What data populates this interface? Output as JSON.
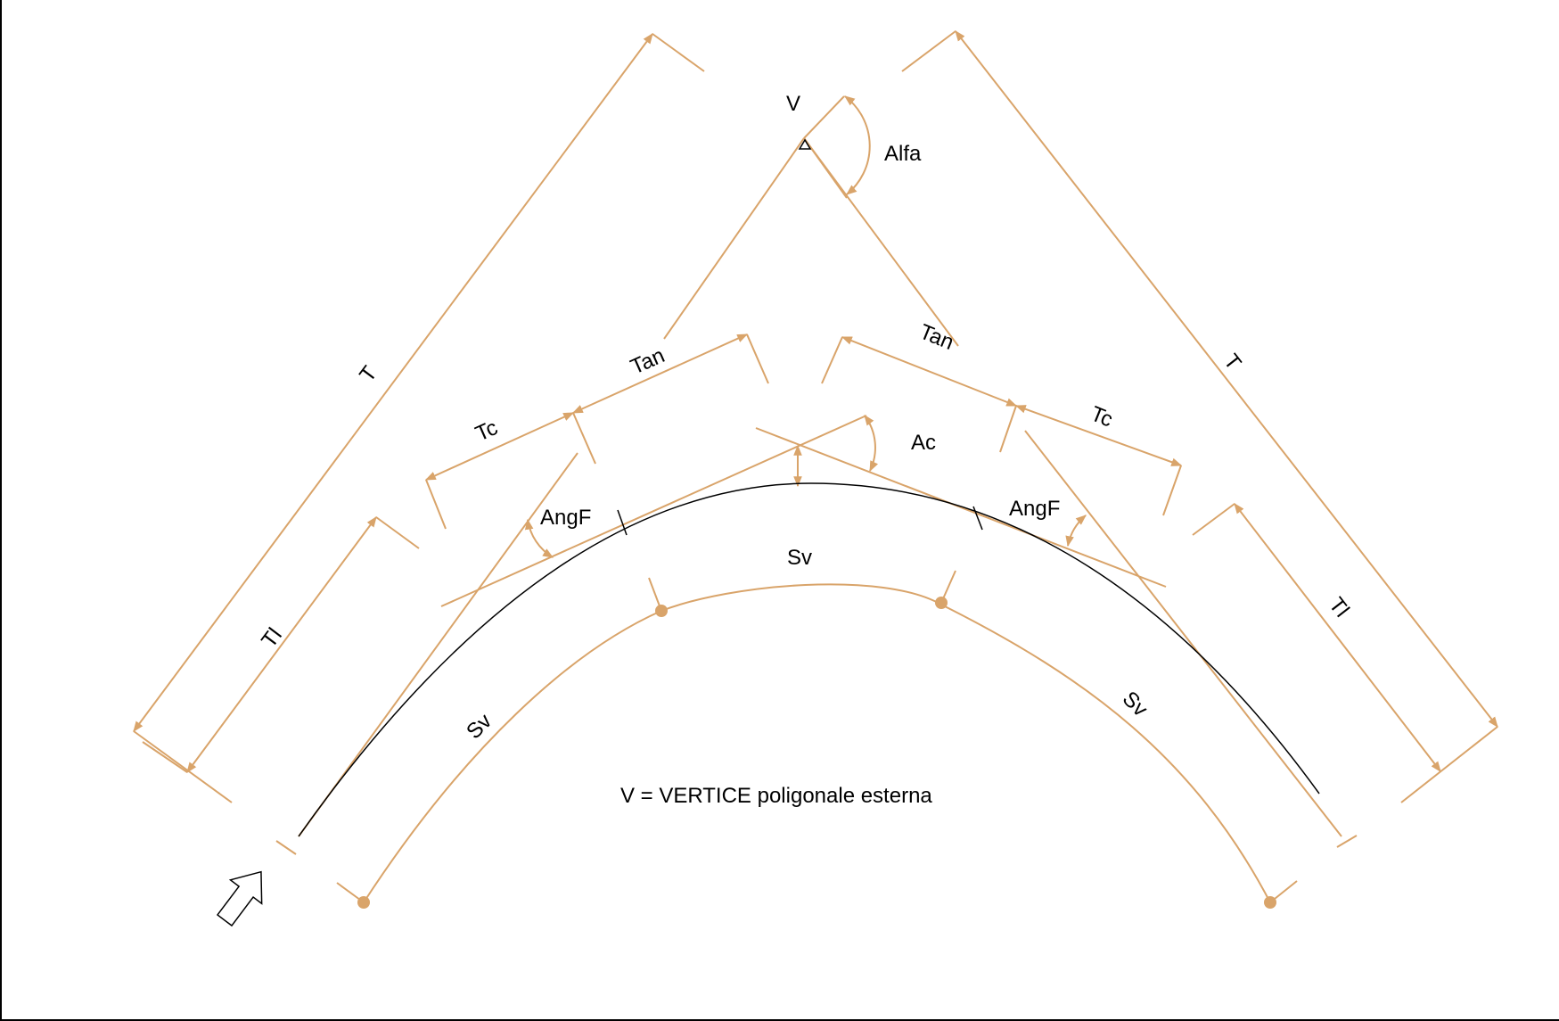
{
  "colors": {
    "dimension": "#D9A46A",
    "curve": "#000000",
    "text": "#000000",
    "background": "#ffffff"
  },
  "labels": {
    "vertex": "V",
    "alfa": "Alfa",
    "t_left": "T",
    "t_right": "T",
    "tan_left": "Tan",
    "tan_right": "Tan",
    "tc_left": "Tc",
    "tc_right": "Tc",
    "ac": "Ac",
    "angf_left": "AngF",
    "angf_right": "AngF",
    "tl_left": "Tl",
    "tl_right": "Tl",
    "sv_top": "Sv",
    "sv_left": "Sv",
    "sv_right": "Sv"
  },
  "legend": "V = VERTICE poligonale esterna",
  "icons": {
    "vertex_marker": "triangle-marker-icon",
    "direction": "direction-arrow-icon"
  }
}
